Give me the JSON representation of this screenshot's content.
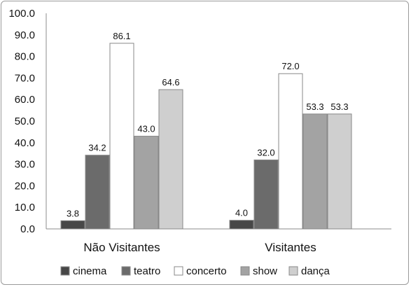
{
  "chart_data": {
    "type": "bar",
    "categories": [
      "Não Visitantes",
      "Visitantes"
    ],
    "series": [
      {
        "name": "cinema",
        "values": [
          3.8,
          4.0
        ],
        "color": "#474747"
      },
      {
        "name": "teatro",
        "values": [
          34.2,
          32.0
        ],
        "color": "#6b6b6b"
      },
      {
        "name": "concerto",
        "values": [
          86.1,
          72.0
        ],
        "color": "#ffffff"
      },
      {
        "name": "show",
        "values": [
          43.0,
          53.3
        ],
        "color": "#a3a3a3"
      },
      {
        "name": "dança",
        "values": [
          64.6,
          53.3
        ],
        "color": "#cfcfcf"
      }
    ],
    "data_labels": [
      [
        "3.8",
        "4.0"
      ],
      [
        "34.2",
        "32.0"
      ],
      [
        "86.1",
        "72.0"
      ],
      [
        "43.0",
        "53.3"
      ],
      [
        "64.6",
        "53.3"
      ]
    ],
    "y_ticks": [
      "0.0",
      "10.0",
      "20.0",
      "30.0",
      "40.0",
      "50.0",
      "60.0",
      "70.0",
      "80.0",
      "90.0",
      "100.0"
    ],
    "ylim": [
      0,
      100
    ],
    "grid": false,
    "legend_position": "bottom",
    "title": "",
    "xlabel": "",
    "ylabel": ""
  }
}
